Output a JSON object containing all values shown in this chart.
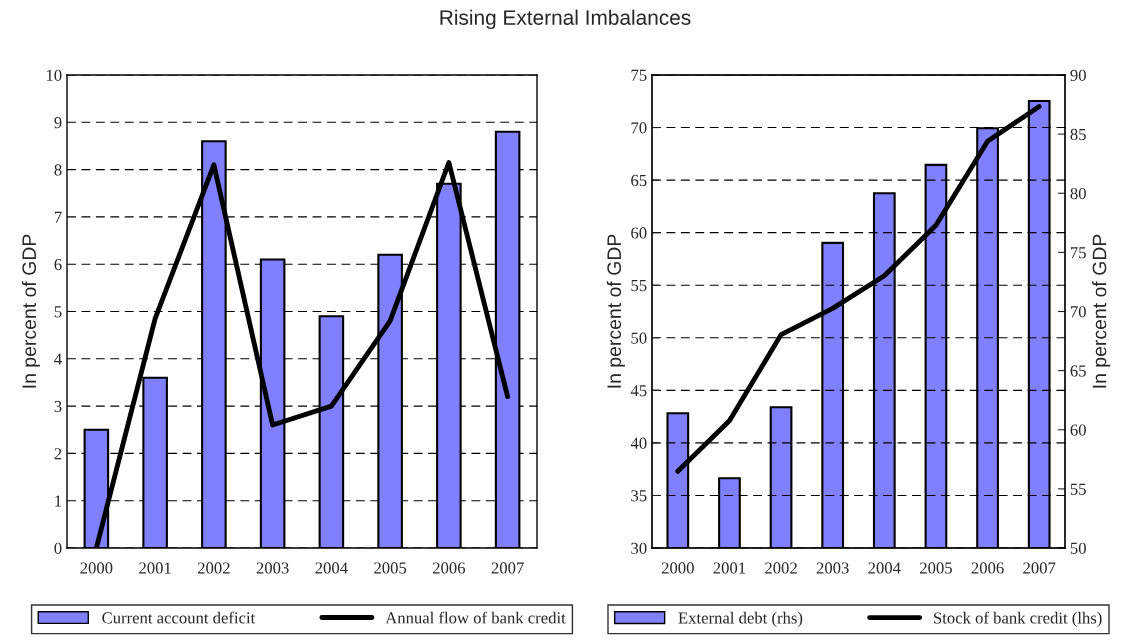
{
  "chart_data": [
    {
      "type": "bar",
      "title": "Rising External Imbalances",
      "categories": [
        "2000",
        "2001",
        "2002",
        "2003",
        "2004",
        "2005",
        "2006",
        "2007"
      ],
      "ylabel": "In percent of GDP",
      "ylim": [
        0,
        10
      ],
      "yticks": [
        0,
        1,
        2,
        3,
        4,
        5,
        6,
        7,
        8,
        9,
        10
      ],
      "grid": "y",
      "legend": "bottom",
      "series": [
        {
          "name": "Current account deficit",
          "color": "#8080ff",
          "values": [
            2.5,
            3.6,
            8.6,
            6.1,
            4.9,
            6.2,
            7.7,
            8.8
          ]
        },
        {
          "name": "Annual flow of bank credit",
          "type": "line",
          "color": "#000000",
          "values": [
            0.0,
            4.85,
            8.1,
            2.6,
            3.0,
            4.8,
            8.15,
            3.2
          ]
        }
      ]
    },
    {
      "type": "bar",
      "categories": [
        "2000",
        "2001",
        "2002",
        "2003",
        "2004",
        "2005",
        "2006",
        "2007"
      ],
      "ylabel": "In percent of GDP",
      "y2label": "In percent of GDP",
      "ylim": [
        30,
        75
      ],
      "yticks": [
        30,
        35,
        40,
        45,
        50,
        55,
        60,
        65,
        70,
        75
      ],
      "y2lim": [
        50,
        90
      ],
      "y2ticks": [
        50,
        55,
        60,
        65,
        70,
        75,
        80,
        85,
        90
      ],
      "grid": "y",
      "legend": "bottom",
      "series": [
        {
          "name": "External debt (rhs)",
          "axis": "y2",
          "color": "#8080ff",
          "values": [
            61.4,
            55.9,
            61.9,
            75.8,
            80.0,
            82.4,
            85.5,
            87.8
          ]
        },
        {
          "name": "Stock of bank credit (lhs)",
          "type": "line",
          "axis": "y",
          "color": "#000000",
          "values": [
            37.3,
            42.1,
            50.3,
            52.8,
            55.9,
            60.7,
            68.7,
            72.0
          ]
        }
      ]
    }
  ]
}
